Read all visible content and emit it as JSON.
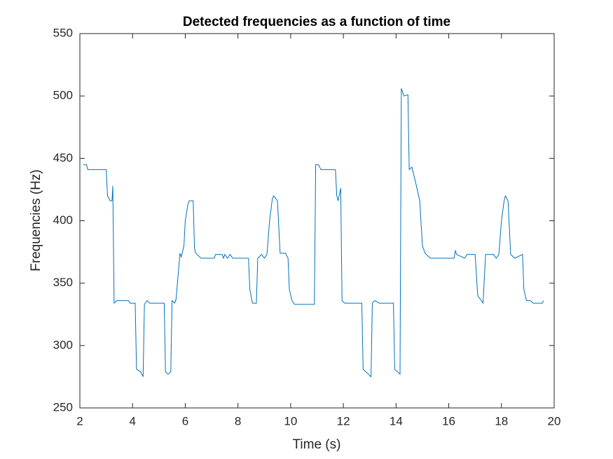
{
  "chart_data": {
    "type": "line",
    "title": "Detected frequencies as a function of time",
    "xlabel": "Time (s)",
    "ylabel": "Frequencies (Hz)",
    "xlim": [
      2,
      20
    ],
    "xticks": [
      2,
      4,
      6,
      8,
      10,
      12,
      14,
      16,
      18,
      20
    ],
    "ylim": [
      250,
      550
    ],
    "yticks": [
      250,
      300,
      350,
      400,
      450,
      500,
      550
    ],
    "grid": false,
    "series": [
      {
        "name": "Frequency",
        "color": "#0072bd",
        "x": [
          2.13,
          2.25,
          2.3,
          3.0,
          3.05,
          3.15,
          3.22,
          3.25,
          3.3,
          3.4,
          3.85,
          3.9,
          4.1,
          4.15,
          4.3,
          4.4,
          4.45,
          4.55,
          4.65,
          5.2,
          5.25,
          5.35,
          5.45,
          5.5,
          5.6,
          5.65,
          5.8,
          5.85,
          5.95,
          6.0,
          6.1,
          6.15,
          6.3,
          6.35,
          6.4,
          6.6,
          7.1,
          7.15,
          7.4,
          7.45,
          7.5,
          7.6,
          7.7,
          7.8,
          8.4,
          8.45,
          8.55,
          8.7,
          8.75,
          8.9,
          9.0,
          9.1,
          9.2,
          9.3,
          9.35,
          9.5,
          9.6,
          9.8,
          9.9,
          9.95,
          10.05,
          10.15,
          10.9,
          10.95,
          11.05,
          11.15,
          11.7,
          11.75,
          11.8,
          11.9,
          11.95,
          12.05,
          12.7,
          12.75,
          12.9,
          13.05,
          13.1,
          13.2,
          13.35,
          13.9,
          13.95,
          14.1,
          14.15,
          14.2,
          14.3,
          14.45,
          14.5,
          14.6,
          14.75,
          14.9,
          15.0,
          15.1,
          15.3,
          16.2,
          16.25,
          16.3,
          16.6,
          16.7,
          17.0,
          17.1,
          17.3,
          17.4,
          17.7,
          17.8,
          17.9,
          18.0,
          18.1,
          18.15,
          18.25,
          18.35,
          18.5,
          18.8,
          18.85,
          18.95,
          19.1,
          19.2,
          19.55,
          19.6
        ],
        "values": [
          445,
          445,
          441,
          441,
          420,
          416,
          416,
          428,
          334,
          336,
          336,
          334,
          334,
          281,
          279,
          275,
          333,
          336,
          334,
          334,
          279,
          277,
          279,
          336,
          334,
          337,
          374,
          371,
          380,
          400,
          413,
          416,
          416,
          378,
          374,
          370,
          370,
          373,
          373,
          370,
          373,
          370,
          373,
          370,
          370,
          345,
          334,
          334,
          370,
          373,
          370,
          373,
          400,
          417,
          420,
          416,
          374,
          374,
          370,
          345,
          336,
          333,
          333,
          445,
          445,
          441,
          441,
          420,
          416,
          426,
          336,
          334,
          334,
          281,
          278,
          275,
          334,
          336,
          334,
          334,
          281,
          278,
          277,
          506,
          500,
          501,
          441,
          443,
          430,
          416,
          380,
          374,
          370,
          370,
          376,
          373,
          370,
          373,
          373,
          340,
          334,
          373,
          373,
          370,
          373,
          400,
          416,
          420,
          416,
          373,
          370,
          373,
          345,
          336,
          336,
          334,
          334,
          336
        ]
      }
    ]
  }
}
